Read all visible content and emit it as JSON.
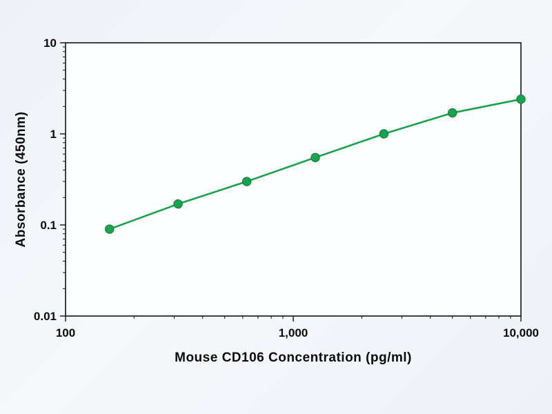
{
  "page": {
    "background_color": "#f2f5f9"
  },
  "chart_data": {
    "type": "line",
    "title": "",
    "xlabel": "Mouse CD106 Concentration (pg/ml)",
    "ylabel": "Absorbance (450nm)",
    "xscale": "log",
    "yscale": "log",
    "xlim": [
      100,
      10000
    ],
    "ylim": [
      0.01,
      10
    ],
    "x": [
      156,
      312,
      625,
      1250,
      2500,
      5000,
      10000
    ],
    "y": [
      0.09,
      0.17,
      0.3,
      0.55,
      1.0,
      1.7,
      2.4
    ],
    "x_tick_values": [
      100,
      1000,
      10000
    ],
    "x_tick_labels": [
      "100",
      "1,000",
      "10,000"
    ],
    "y_tick_values": [
      10,
      1,
      0.1,
      0.01
    ],
    "y_tick_labels": [
      "10",
      "1",
      "0.1",
      "0.01"
    ],
    "line_color": "#1aa34f",
    "marker_color": "#1aa34f",
    "marker_edge_color": "#0e7a38",
    "axis_color": "#111111",
    "grid": false,
    "legend": false
  }
}
